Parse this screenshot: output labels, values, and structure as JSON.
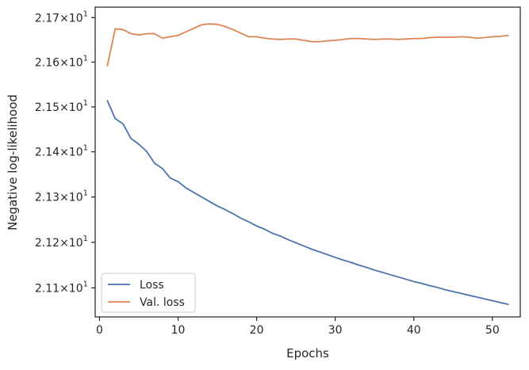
{
  "chart_data": {
    "type": "line",
    "title": "",
    "xlabel": "Epochs",
    "ylabel": "Negative log-likelihood",
    "xlim": [
      -0.55,
      53.55
    ],
    "ylim": [
      21.0366,
      21.7237
    ],
    "yscale": "log",
    "x_ticks": [
      {
        "value": 0,
        "label": "0"
      },
      {
        "value": 10,
        "label": "10"
      },
      {
        "value": 20,
        "label": "20"
      },
      {
        "value": 30,
        "label": "30"
      },
      {
        "value": 40,
        "label": "40"
      },
      {
        "value": 50,
        "label": "50"
      }
    ],
    "y_ticks": [
      {
        "value": 21.1,
        "mantissa": "2.11",
        "base": "10",
        "exp": "1"
      },
      {
        "value": 21.2,
        "mantissa": "2.12",
        "base": "10",
        "exp": "1"
      },
      {
        "value": 21.3,
        "mantissa": "2.13",
        "base": "10",
        "exp": "1"
      },
      {
        "value": 21.4,
        "mantissa": "2.14",
        "base": "10",
        "exp": "1"
      },
      {
        "value": 21.5,
        "mantissa": "2.15",
        "base": "10",
        "exp": "1"
      },
      {
        "value": 21.6,
        "mantissa": "2.16",
        "base": "10",
        "exp": "1"
      },
      {
        "value": 21.7,
        "mantissa": "2.17",
        "base": "10",
        "exp": "1"
      }
    ],
    "times_sign": "×",
    "grid": false,
    "legend_position": "lower-left",
    "series": [
      {
        "name": "Loss",
        "color": "#4c72b0",
        "x": [
          1,
          2,
          3,
          4,
          5,
          6,
          7,
          8,
          9,
          10,
          11,
          12,
          13,
          14,
          15,
          16,
          17,
          18,
          19,
          20,
          21,
          22,
          23,
          24,
          25,
          26,
          27,
          28,
          29,
          30,
          31,
          32,
          33,
          34,
          35,
          36,
          37,
          38,
          39,
          40,
          41,
          42,
          43,
          44,
          45,
          46,
          47,
          48,
          49,
          50,
          51,
          52
        ],
        "values": [
          21.514,
          21.474,
          21.462,
          21.43,
          21.417,
          21.401,
          21.375,
          21.363,
          21.342,
          21.334,
          21.32,
          21.31,
          21.3,
          21.29,
          21.28,
          21.272,
          21.263,
          21.253,
          21.245,
          21.236,
          21.229,
          21.22,
          21.214,
          21.206,
          21.199,
          21.192,
          21.185,
          21.179,
          21.173,
          21.167,
          21.161,
          21.156,
          21.15,
          21.145,
          21.139,
          21.134,
          21.129,
          21.124,
          21.119,
          21.114,
          21.11,
          21.105,
          21.101,
          21.096,
          21.092,
          21.088,
          21.084,
          21.08,
          21.076,
          21.072,
          21.068,
          21.064
        ]
      },
      {
        "name": "Val. loss",
        "color": "#dd8452",
        "x": [
          1,
          2,
          3,
          4,
          5,
          6,
          7,
          8,
          9,
          10,
          11,
          12,
          13,
          14,
          15,
          16,
          17,
          18,
          19,
          20,
          21,
          22,
          23,
          24,
          25,
          26,
          27,
          28,
          29,
          30,
          31,
          32,
          33,
          34,
          35,
          36,
          37,
          38,
          39,
          40,
          41,
          42,
          43,
          44,
          45,
          46,
          47,
          48,
          49,
          50,
          51,
          52
        ],
        "values": [
          21.592,
          21.675,
          21.673,
          21.664,
          21.661,
          21.664,
          21.664,
          21.654,
          21.657,
          21.66,
          21.668,
          21.676,
          21.684,
          21.686,
          21.685,
          21.68,
          21.673,
          21.665,
          21.657,
          21.657,
          21.654,
          21.652,
          21.651,
          21.652,
          21.652,
          21.649,
          21.646,
          21.646,
          21.648,
          21.649,
          21.651,
          21.653,
          21.653,
          21.652,
          21.651,
          21.652,
          21.652,
          21.651,
          21.652,
          21.653,
          21.653,
          21.655,
          21.656,
          21.656,
          21.656,
          21.657,
          21.656,
          21.654,
          21.655,
          21.657,
          21.658,
          21.66
        ]
      }
    ]
  }
}
